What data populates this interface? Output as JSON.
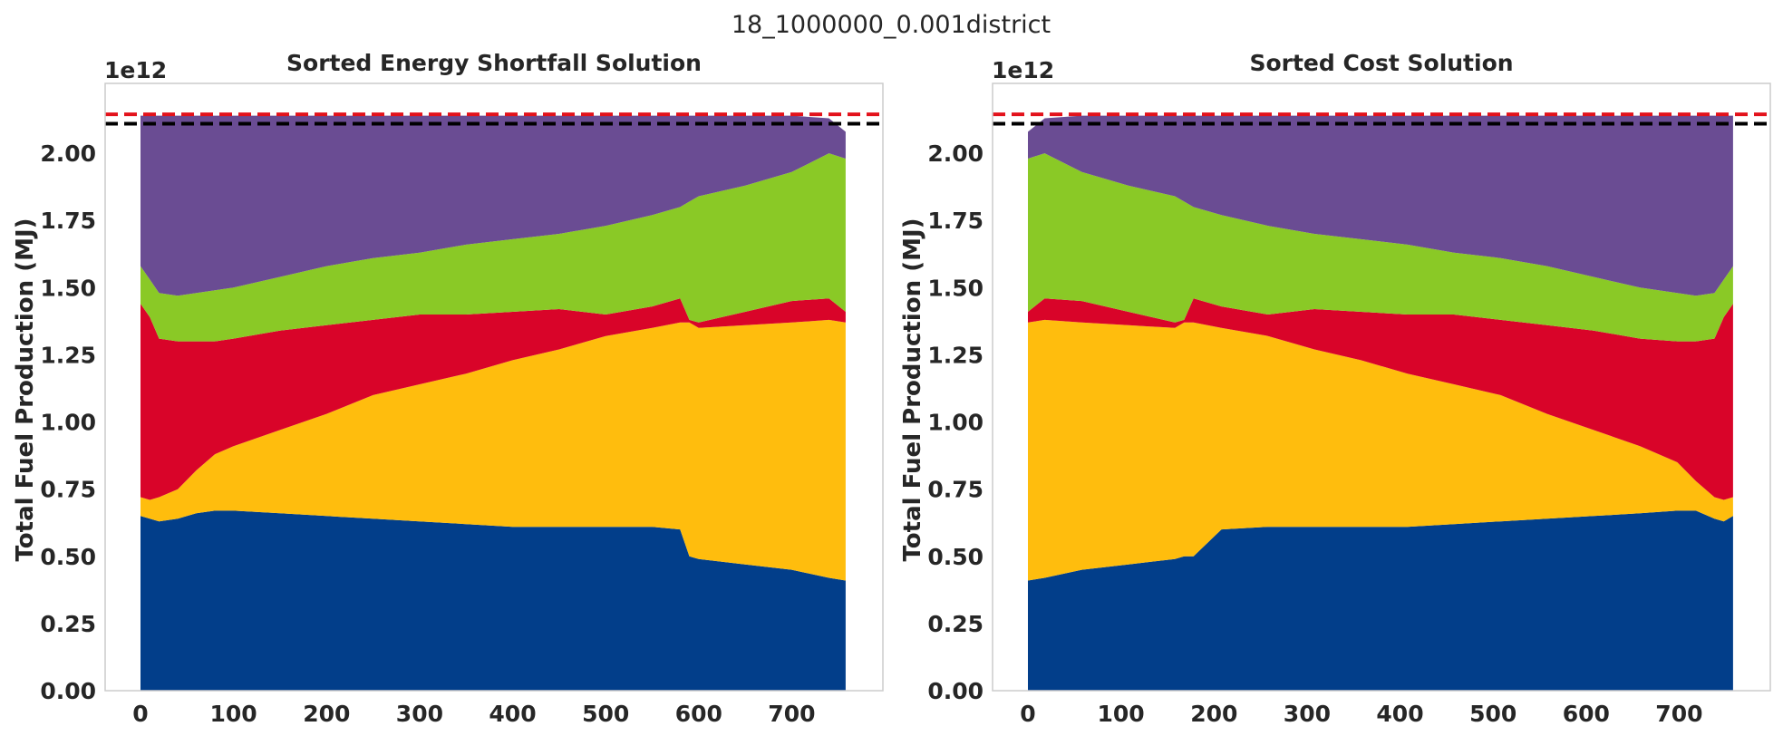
{
  "suptitle": "18_1000000_0.001district",
  "colors": {
    "stack": [
      "#023e8a",
      "#ffbd0d",
      "#d90429",
      "#8ac926",
      "#6a4c93"
    ],
    "ref_red": "#e3121b",
    "ref_black": "#000000",
    "frame": "#cccccc",
    "text": "#262626"
  },
  "chart_data": [
    {
      "type": "area",
      "title": "Sorted Energy Shortfall Solution",
      "ylabel": "Total Fuel Production (MJ)",
      "y_offset_label": "1e12",
      "xlim": [
        -38,
        798
      ],
      "ylim": [
        0,
        2.26
      ],
      "xticks": [
        0,
        100,
        200,
        300,
        400,
        500,
        600,
        700
      ],
      "xtick_labels": [
        "0",
        "100",
        "200",
        "300",
        "400",
        "500",
        "600",
        "700"
      ],
      "yticks": [
        0,
        0.25,
        0.5,
        0.75,
        1.0,
        1.25,
        1.5,
        1.75,
        2.0
      ],
      "ytick_labels": [
        "0.00",
        "0.25",
        "0.50",
        "0.75",
        "1.00",
        "1.25",
        "1.50",
        "1.75",
        "2.00"
      ],
      "grid": false,
      "reference_lines": [
        {
          "y": 2.145,
          "color": "#e3121b",
          "style": "dashed"
        },
        {
          "y": 2.11,
          "color": "#000000",
          "style": "dashed"
        }
      ],
      "x": [
        0,
        10,
        20,
        40,
        60,
        80,
        100,
        150,
        200,
        250,
        300,
        350,
        400,
        450,
        500,
        550,
        580,
        590,
        600,
        650,
        700,
        740,
        758
      ],
      "cumulative_tops": [
        [
          0.65,
          0.64,
          0.63,
          0.64,
          0.66,
          0.67,
          0.67,
          0.66,
          0.65,
          0.64,
          0.63,
          0.62,
          0.61,
          0.61,
          0.61,
          0.61,
          0.6,
          0.5,
          0.49,
          0.47,
          0.45,
          0.42,
          0.41
        ],
        [
          0.72,
          0.71,
          0.72,
          0.75,
          0.82,
          0.88,
          0.91,
          0.97,
          1.03,
          1.1,
          1.14,
          1.18,
          1.23,
          1.27,
          1.32,
          1.35,
          1.37,
          1.37,
          1.35,
          1.36,
          1.37,
          1.38,
          1.37
        ],
        [
          1.44,
          1.39,
          1.31,
          1.3,
          1.3,
          1.3,
          1.31,
          1.34,
          1.36,
          1.38,
          1.4,
          1.4,
          1.41,
          1.42,
          1.4,
          1.43,
          1.46,
          1.38,
          1.37,
          1.41,
          1.45,
          1.46,
          1.41
        ],
        [
          1.58,
          1.53,
          1.48,
          1.47,
          1.48,
          1.49,
          1.5,
          1.54,
          1.58,
          1.61,
          1.63,
          1.66,
          1.68,
          1.7,
          1.73,
          1.77,
          1.8,
          1.82,
          1.84,
          1.88,
          1.93,
          2.0,
          1.98
        ],
        [
          2.14,
          2.14,
          2.14,
          2.14,
          2.14,
          2.14,
          2.14,
          2.14,
          2.14,
          2.14,
          2.14,
          2.14,
          2.14,
          2.14,
          2.14,
          2.14,
          2.14,
          2.14,
          2.14,
          2.14,
          2.14,
          2.13,
          2.08
        ]
      ]
    },
    {
      "type": "area",
      "title": "Sorted Cost Solution",
      "ylabel": "Total Fuel Production (MJ)",
      "y_offset_label": "1e12",
      "xlim": [
        -38,
        798
      ],
      "ylim": [
        0,
        2.26
      ],
      "xticks": [
        0,
        100,
        200,
        300,
        400,
        500,
        600,
        700
      ],
      "xtick_labels": [
        "0",
        "100",
        "200",
        "300",
        "400",
        "500",
        "600",
        "700"
      ],
      "yticks": [
        0,
        0.25,
        0.5,
        0.75,
        1.0,
        1.25,
        1.5,
        1.75,
        2.0
      ],
      "ytick_labels": [
        "0.00",
        "0.25",
        "0.50",
        "0.75",
        "1.00",
        "1.25",
        "1.50",
        "1.75",
        "2.00"
      ],
      "grid": false,
      "reference_lines": [
        {
          "y": 2.145,
          "color": "#e3121b",
          "style": "dashed"
        },
        {
          "y": 2.11,
          "color": "#000000",
          "style": "dashed"
        }
      ],
      "x": [
        0,
        18,
        58,
        108,
        158,
        168,
        178,
        208,
        258,
        308,
        358,
        408,
        458,
        508,
        558,
        608,
        658,
        698,
        718,
        738,
        748,
        758
      ],
      "cumulative_tops": [
        [
          0.41,
          0.42,
          0.45,
          0.47,
          0.49,
          0.5,
          0.5,
          0.6,
          0.61,
          0.61,
          0.61,
          0.61,
          0.62,
          0.63,
          0.64,
          0.65,
          0.66,
          0.67,
          0.67,
          0.64,
          0.63,
          0.65
        ],
        [
          1.37,
          1.38,
          1.37,
          1.36,
          1.35,
          1.37,
          1.37,
          1.35,
          1.32,
          1.27,
          1.23,
          1.18,
          1.14,
          1.1,
          1.03,
          0.97,
          0.91,
          0.85,
          0.78,
          0.72,
          0.71,
          0.72
        ],
        [
          1.41,
          1.46,
          1.45,
          1.41,
          1.37,
          1.38,
          1.46,
          1.43,
          1.4,
          1.42,
          1.41,
          1.4,
          1.4,
          1.38,
          1.36,
          1.34,
          1.31,
          1.3,
          1.3,
          1.31,
          1.39,
          1.44
        ],
        [
          1.98,
          2.0,
          1.93,
          1.88,
          1.84,
          1.82,
          1.8,
          1.77,
          1.73,
          1.7,
          1.68,
          1.66,
          1.63,
          1.61,
          1.58,
          1.54,
          1.5,
          1.48,
          1.47,
          1.48,
          1.53,
          1.58
        ],
        [
          2.08,
          2.13,
          2.14,
          2.14,
          2.14,
          2.14,
          2.14,
          2.14,
          2.14,
          2.14,
          2.14,
          2.14,
          2.14,
          2.14,
          2.14,
          2.14,
          2.14,
          2.14,
          2.14,
          2.14,
          2.14,
          2.14
        ]
      ]
    }
  ]
}
